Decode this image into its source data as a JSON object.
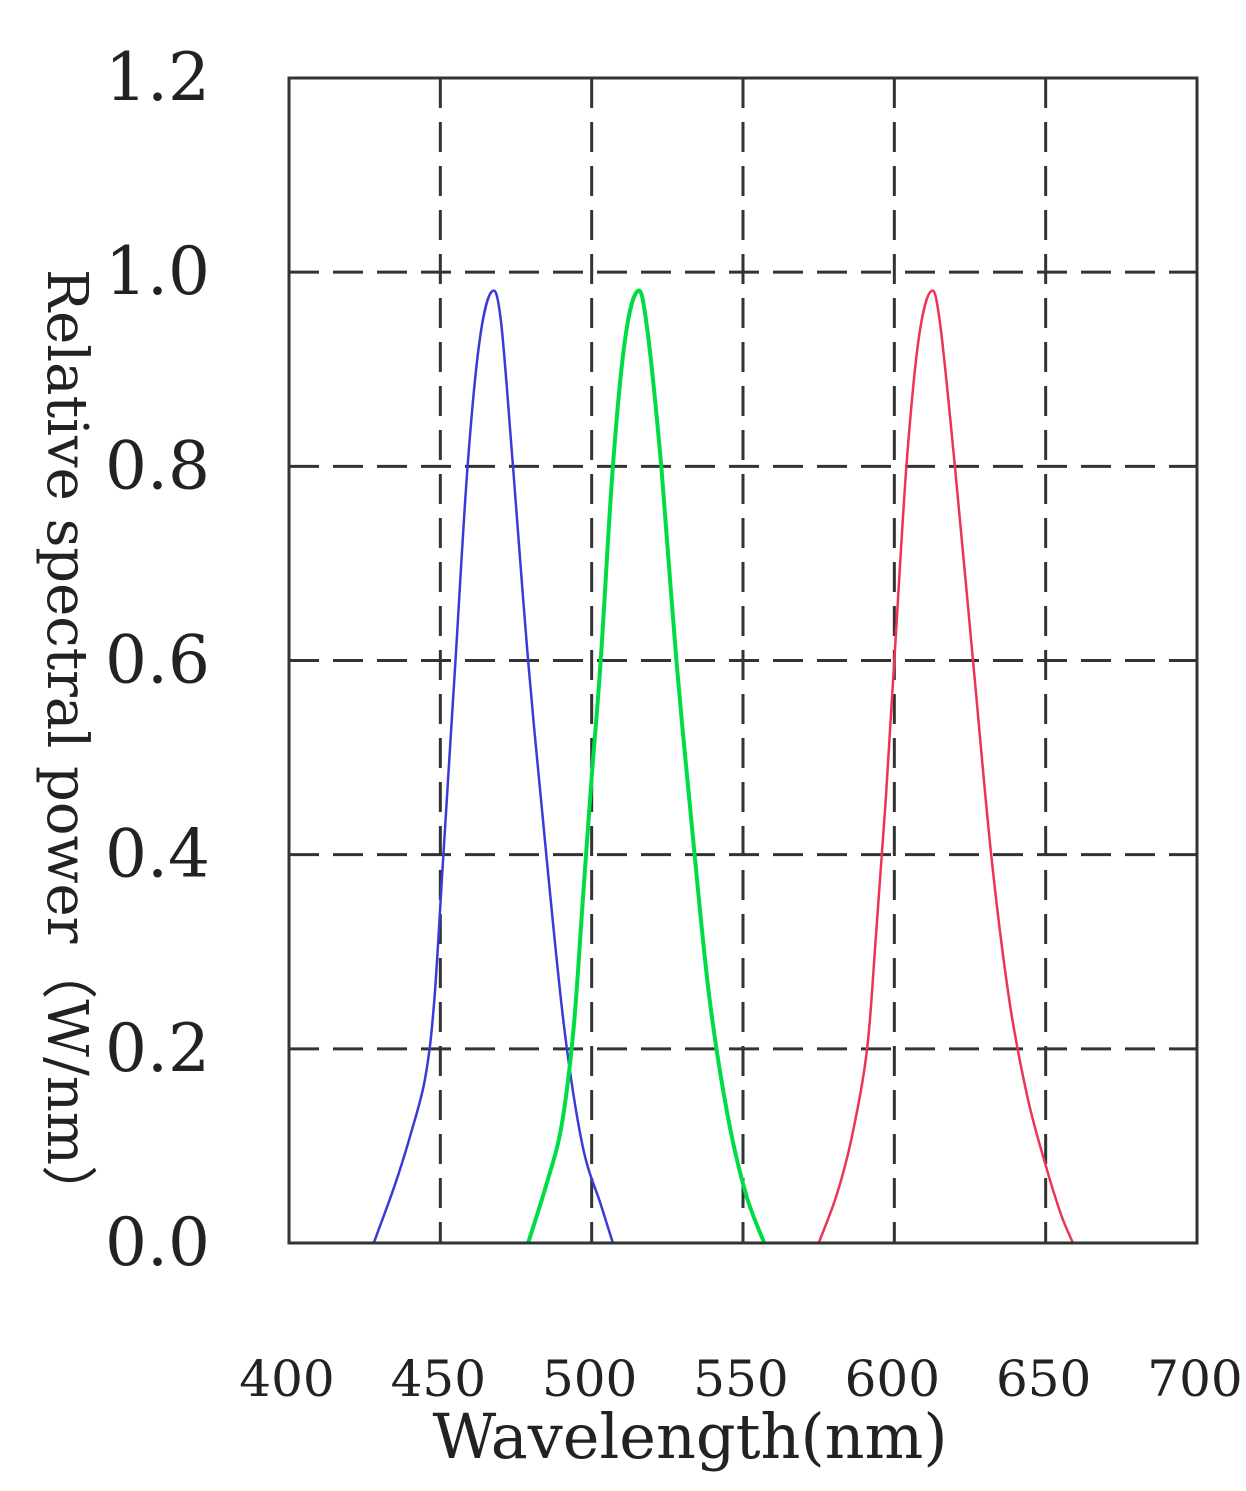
{
  "chart_data": {
    "type": "line",
    "title": "",
    "xlabel": "Wavelength(nm)",
    "ylabel": "Relative spectral power（W/nm）",
    "xlim": [
      400,
      700
    ],
    "ylim": [
      0,
      1.2
    ],
    "x_ticks": [
      "400",
      "450",
      "500",
      "550",
      "600",
      "650",
      "700"
    ],
    "y_ticks": [
      "0.0",
      "0.2",
      "0.4",
      "0.6",
      "0.8",
      "1.0",
      "1.2"
    ],
    "grid": "dashed",
    "series": [
      {
        "color": "#3a3ad8",
        "points": [
          [
            428,
            0.0
          ],
          [
            435,
            0.06
          ],
          [
            440,
            0.11
          ],
          [
            445,
            0.17
          ],
          [
            448,
            0.25
          ],
          [
            451,
            0.4
          ],
          [
            455,
            0.6
          ],
          [
            459,
            0.8
          ],
          [
            463,
            0.93
          ],
          [
            467,
            0.98
          ],
          [
            470,
            0.95
          ],
          [
            474,
            0.8
          ],
          [
            479,
            0.6
          ],
          [
            485,
            0.4
          ],
          [
            491,
            0.22
          ],
          [
            497,
            0.1
          ],
          [
            503,
            0.04
          ],
          [
            507,
            0.0
          ]
        ]
      },
      {
        "color": "#00dd44",
        "points": [
          [
            479,
            0.0
          ],
          [
            485,
            0.06
          ],
          [
            490,
            0.12
          ],
          [
            494,
            0.22
          ],
          [
            497,
            0.35
          ],
          [
            500,
            0.48
          ],
          [
            503,
            0.6
          ],
          [
            507,
            0.8
          ],
          [
            511,
            0.93
          ],
          [
            515,
            0.98
          ],
          [
            518,
            0.95
          ],
          [
            523,
            0.8
          ],
          [
            528,
            0.6
          ],
          [
            534,
            0.4
          ],
          [
            539,
            0.25
          ],
          [
            545,
            0.13
          ],
          [
            551,
            0.05
          ],
          [
            557,
            0.0
          ]
        ]
      },
      {
        "color": "#ee3355",
        "points": [
          [
            575,
            0.0
          ],
          [
            581,
            0.05
          ],
          [
            586,
            0.11
          ],
          [
            591,
            0.2
          ],
          [
            594,
            0.32
          ],
          [
            597,
            0.45
          ],
          [
            600,
            0.6
          ],
          [
            604,
            0.8
          ],
          [
            608,
            0.93
          ],
          [
            612,
            0.98
          ],
          [
            615,
            0.95
          ],
          [
            620,
            0.8
          ],
          [
            626,
            0.6
          ],
          [
            632,
            0.4
          ],
          [
            638,
            0.25
          ],
          [
            644,
            0.15
          ],
          [
            650,
            0.08
          ],
          [
            655,
            0.03
          ],
          [
            659,
            0.0
          ]
        ]
      }
    ]
  }
}
